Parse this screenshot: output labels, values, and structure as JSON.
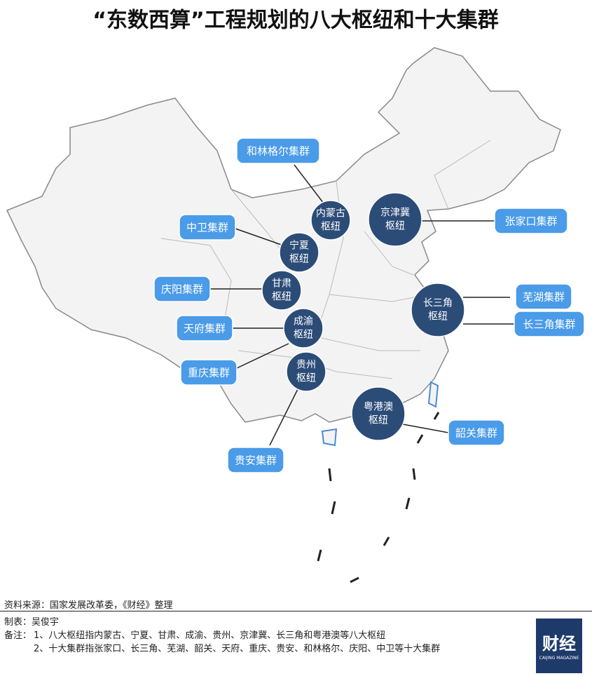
{
  "title": "“东数西算”工程规划的八大枢纽和十大集群",
  "hubs": [
    {
      "lines": [
        "内蒙古",
        "枢纽"
      ]
    },
    {
      "lines": [
        "宁夏",
        "枢纽"
      ]
    },
    {
      "lines": [
        "甘肃",
        "枢纽"
      ]
    },
    {
      "lines": [
        "成渝",
        "枢纽"
      ]
    },
    {
      "lines": [
        "贵州",
        "枢纽"
      ]
    },
    {
      "lines": [
        "京津冀",
        "枢纽"
      ]
    },
    {
      "lines": [
        "长三角",
        "枢纽"
      ]
    },
    {
      "lines": [
        "粤港澳",
        "枢纽"
      ]
    }
  ],
  "clusters": [
    "和林格尔集群",
    "中卫集群",
    "庆阳集群",
    "天府集群",
    "重庆集群",
    "贵安集群",
    "张家口集群",
    "芜湖集群",
    "长三角集群",
    "韶关集群"
  ],
  "source": "资料来源：国家发展改革委，《财经》整理",
  "author": "制表：吴俊宇",
  "notes_label": "备注：",
  "notes": [
    "1、八大枢纽指内蒙古、宁夏、甘肃、成渝、贵州、京津冀、长三角和粤港澳等八大枢纽",
    "2、十大集群指张家口、长三角、芜湖、韶关、天府、重庆、贵安、和林格尔、庆阳、中卫等十大集群"
  ],
  "logo": {
    "text": "财经",
    "subtitle": "CAIJING MAGAZINE"
  }
}
